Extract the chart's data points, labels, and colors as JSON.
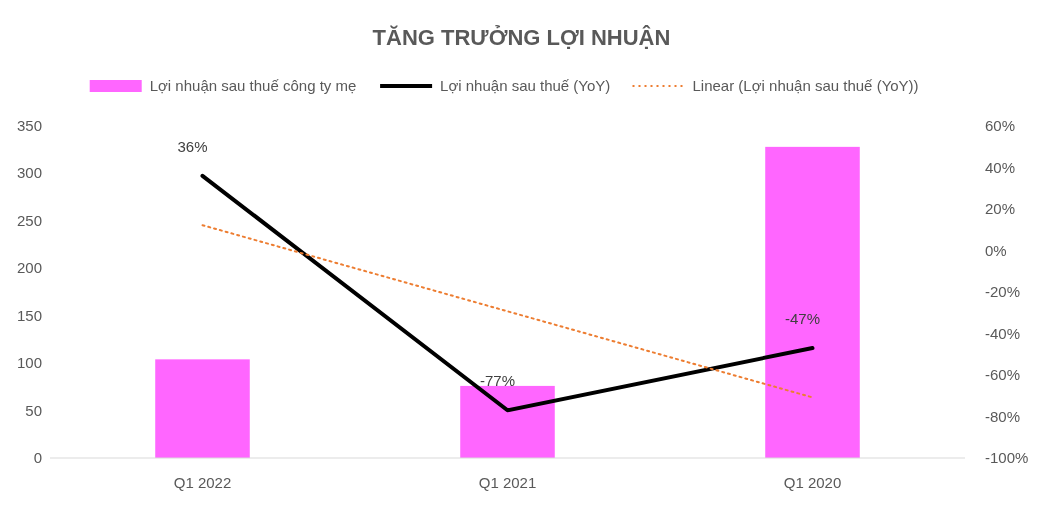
{
  "chart_data": {
    "type": "bar",
    "title": "TĂNG TRƯỞNG LỢI NHUẬN",
    "categories": [
      "Q1 2022",
      "Q1 2021",
      "Q1 2020"
    ],
    "series": [
      {
        "name": "Lợi nhuận sau thuế công ty mẹ",
        "color": "#ff66ff",
        "values": [
          104,
          76,
          328
        ]
      },
      {
        "name": "Lợi nhuận sau thuế (YoY)",
        "type": "line",
        "axis": "y2",
        "color": "#000000",
        "values": [
          36,
          -77,
          -47
        ],
        "value_labels": [
          "36%",
          "-77%",
          "-47%"
        ]
      },
      {
        "name": "Linear (Lợi nhuận sau thuế (YoY))",
        "type": "line",
        "axis": "y2",
        "color": "#ed7d31",
        "line_style": "dotted",
        "values": [
          12.2,
          -29.3,
          -70.8
        ]
      }
    ],
    "ylim": [
      0,
      350
    ],
    "yticks": [
      0,
      50,
      100,
      150,
      200,
      250,
      300,
      350
    ],
    "y2lim": [
      -100,
      60
    ],
    "y2ticks": [
      {
        "value": -100,
        "label": "-100%"
      },
      {
        "value": -80,
        "label": "-80%"
      },
      {
        "value": -60,
        "label": "-60%"
      },
      {
        "value": -40,
        "label": "-40%"
      },
      {
        "value": -20,
        "label": "-20%"
      },
      {
        "value": 0,
        "label": "0%"
      },
      {
        "value": 20,
        "label": "20%"
      },
      {
        "value": 40,
        "label": "40%"
      },
      {
        "value": 60,
        "label": "60%"
      }
    ],
    "legend": "top"
  }
}
